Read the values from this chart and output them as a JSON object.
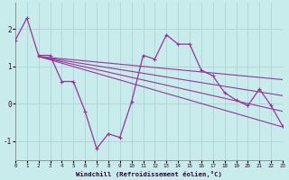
{
  "xlabel": "Windchill (Refroidissement éolien,°C)",
  "background_color": "#c8ecec",
  "grid_color": "#b0d8d8",
  "line_color": "#993399",
  "hours": [
    0,
    1,
    2,
    3,
    4,
    5,
    6,
    7,
    8,
    9,
    10,
    11,
    12,
    13,
    14,
    15,
    16,
    17,
    18,
    19,
    20,
    21,
    22,
    23
  ],
  "windchill": [
    1.7,
    2.3,
    1.3,
    1.3,
    0.6,
    0.6,
    -0.2,
    -1.2,
    -0.8,
    -0.9,
    0.05,
    1.3,
    1.2,
    1.85,
    1.6,
    1.6,
    0.9,
    0.75,
    0.3,
    0.1,
    -0.05,
    0.4,
    -0.05,
    -0.6
  ],
  "trend_lines": [
    {
      "x": [
        2,
        23
      ],
      "y": [
        1.27,
        -0.62
      ]
    },
    {
      "x": [
        2,
        23
      ],
      "y": [
        1.27,
        -0.2
      ]
    },
    {
      "x": [
        2,
        23
      ],
      "y": [
        1.27,
        0.22
      ]
    },
    {
      "x": [
        2,
        23
      ],
      "y": [
        1.27,
        0.65
      ]
    }
  ],
  "ylim": [
    -1.5,
    2.7
  ],
  "yticks": [
    -1,
    0,
    1,
    2
  ],
  "xlim": [
    0,
    23
  ],
  "figsize": [
    3.2,
    2.0
  ],
  "dpi": 100
}
